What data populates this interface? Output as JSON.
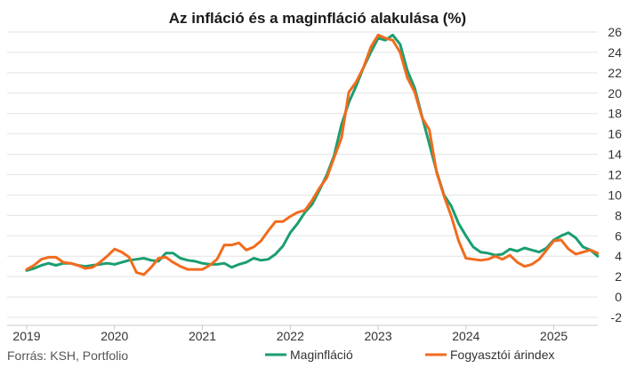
{
  "chart_data": {
    "type": "line",
    "title": "Az infláció és a maginfláció alakulása (%)",
    "source": "Forrás: KSH, Portfolio",
    "x_ticks": [
      "2019",
      "2020",
      "2021",
      "2022",
      "2023",
      "2024",
      "2025"
    ],
    "y_ticks": [
      "26",
      "24",
      "22",
      "20",
      "18",
      "16",
      "14",
      "12",
      "10",
      "8",
      "6",
      "4",
      "2",
      "0",
      "-2"
    ],
    "ylim": [
      -2,
      26
    ],
    "xlim": [
      "2019-01",
      "2025-07"
    ],
    "grid": true,
    "legend_position": "bottom",
    "x": [
      "2019-01",
      "2019-02",
      "2019-03",
      "2019-04",
      "2019-05",
      "2019-06",
      "2019-07",
      "2019-08",
      "2019-09",
      "2019-10",
      "2019-11",
      "2019-12",
      "2020-01",
      "2020-02",
      "2020-03",
      "2020-04",
      "2020-05",
      "2020-06",
      "2020-07",
      "2020-08",
      "2020-09",
      "2020-10",
      "2020-11",
      "2020-12",
      "2021-01",
      "2021-02",
      "2021-03",
      "2021-04",
      "2021-05",
      "2021-06",
      "2021-07",
      "2021-08",
      "2021-09",
      "2021-10",
      "2021-11",
      "2021-12",
      "2022-01",
      "2022-02",
      "2022-03",
      "2022-04",
      "2022-05",
      "2022-06",
      "2022-07",
      "2022-08",
      "2022-09",
      "2022-10",
      "2022-11",
      "2022-12",
      "2023-01",
      "2023-02",
      "2023-03",
      "2023-04",
      "2023-05",
      "2023-06",
      "2023-07",
      "2023-08",
      "2023-09",
      "2023-10",
      "2023-11",
      "2023-12",
      "2024-01",
      "2024-02",
      "2024-03",
      "2024-04",
      "2024-05",
      "2024-06",
      "2024-07",
      "2024-08",
      "2024-09",
      "2024-10",
      "2024-11",
      "2024-12",
      "2025-01",
      "2025-02",
      "2025-03",
      "2025-04",
      "2025-05",
      "2025-06",
      "2025-07"
    ],
    "series": [
      {
        "name": "Maginfláció",
        "color": "#1a9e6f",
        "values": [
          2.6,
          2.8,
          3.1,
          3.3,
          3.1,
          3.3,
          3.3,
          3.1,
          3.0,
          3.1,
          3.2,
          3.3,
          3.2,
          3.4,
          3.6,
          3.7,
          3.8,
          3.6,
          3.5,
          4.3,
          4.3,
          3.8,
          3.6,
          3.5,
          3.3,
          3.2,
          3.2,
          3.3,
          2.9,
          3.2,
          3.4,
          3.8,
          3.6,
          3.7,
          4.2,
          5.0,
          6.3,
          7.2,
          8.3,
          9.1,
          10.5,
          12.0,
          13.9,
          16.9,
          19.1,
          20.7,
          22.5,
          24.0,
          25.4,
          25.2,
          25.7,
          24.8,
          22.2,
          20.5,
          17.7,
          15.0,
          12.3,
          10.0,
          8.9,
          7.2,
          6.0,
          4.9,
          4.4,
          4.3,
          4.1,
          4.2,
          4.7,
          4.5,
          4.8,
          4.6,
          4.4,
          4.8,
          5.6,
          6.0,
          6.3,
          5.8,
          4.9,
          4.6,
          4.0
        ]
      },
      {
        "name": "Fogyasztói árindex",
        "color": "#f26b1d",
        "values": [
          2.7,
          3.1,
          3.7,
          3.9,
          3.9,
          3.4,
          3.3,
          3.1,
          2.8,
          2.9,
          3.4,
          4.0,
          4.7,
          4.4,
          3.9,
          2.4,
          2.2,
          2.9,
          3.8,
          3.9,
          3.4,
          3.0,
          2.7,
          2.7,
          2.7,
          3.1,
          3.7,
          5.1,
          5.1,
          5.3,
          4.6,
          4.9,
          5.5,
          6.5,
          7.4,
          7.4,
          7.9,
          8.3,
          8.5,
          9.5,
          10.7,
          11.7,
          13.7,
          15.6,
          20.1,
          21.1,
          22.5,
          24.5,
          25.7,
          25.4,
          25.2,
          24.0,
          21.5,
          20.1,
          17.6,
          16.4,
          12.2,
          9.9,
          7.9,
          5.5,
          3.8,
          3.7,
          3.6,
          3.7,
          4.0,
          3.7,
          4.1,
          3.4,
          3.0,
          3.2,
          3.7,
          4.6,
          5.5,
          5.6,
          4.7,
          4.2,
          4.4,
          4.6,
          4.3
        ]
      }
    ]
  }
}
